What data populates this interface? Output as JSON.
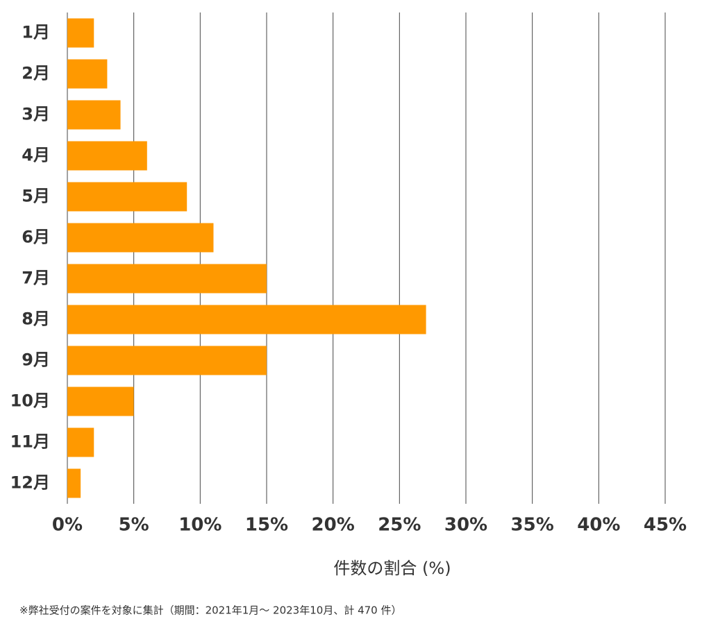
{
  "chart_data": {
    "type": "bar",
    "orientation": "horizontal",
    "x_label": "件数の割合 (%)",
    "footnote": "※弊社受付の案件を対象に集計（期間：2021年1月～ 2023年10月、計 470 件）",
    "categories": [
      "1月",
      "2月",
      "3月",
      "4月",
      "5月",
      "6月",
      "7月",
      "8月",
      "9月",
      "10月",
      "11月",
      "12月"
    ],
    "values": [
      2,
      3,
      4,
      6,
      9,
      11,
      15,
      27,
      15,
      5,
      2,
      1
    ],
    "color": "#ff9900",
    "xlim": [
      0,
      45
    ],
    "xticks": [
      {
        "value": 0,
        "label": "0%"
      },
      {
        "value": 5,
        "label": "5%"
      },
      {
        "value": 10,
        "label": "10%"
      },
      {
        "value": 15,
        "label": "15%"
      },
      {
        "value": 20,
        "label": "20%"
      },
      {
        "value": 25,
        "label": "25%"
      },
      {
        "value": 30,
        "label": "30%"
      },
      {
        "value": 35,
        "label": "35%"
      },
      {
        "value": 40,
        "label": "40%"
      },
      {
        "value": 45,
        "label": "45%"
      }
    ],
    "grid": true
  }
}
